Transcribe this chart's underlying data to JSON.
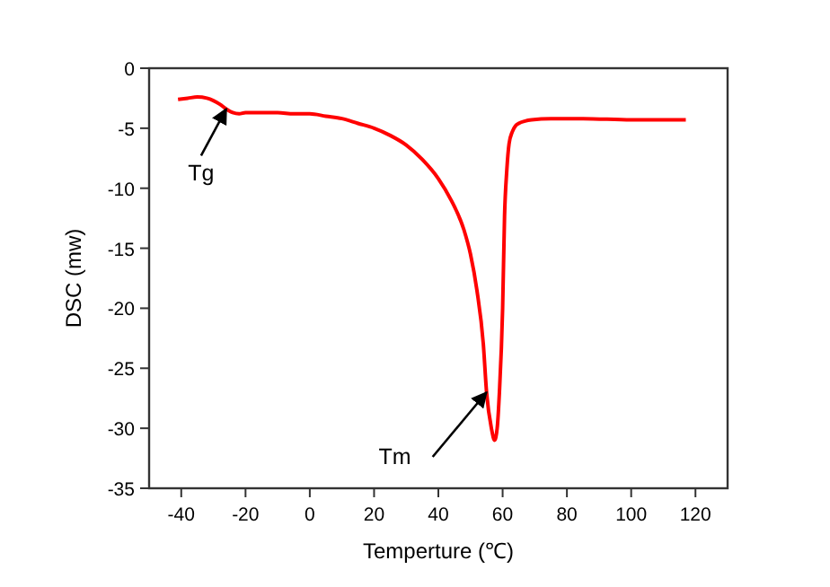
{
  "chart_data": {
    "type": "line",
    "xlabel": "Temperture (℃)",
    "ylabel": "DSC (mw)",
    "xlim": [
      -50,
      130
    ],
    "xticks": [
      -40,
      -20,
      0,
      20,
      40,
      60,
      80,
      100,
      120
    ],
    "ylim": [
      -35,
      0
    ],
    "yticks": [
      -35,
      -30,
      -25,
      -20,
      -15,
      -10,
      -5,
      0
    ],
    "grid": false,
    "marker": "none",
    "line_style": "solid",
    "annotations": [
      {
        "text": "Tg",
        "x": -26,
        "y": -3.4
      },
      {
        "text": "Tm",
        "x": 55,
        "y": -27
      }
    ],
    "series": [
      {
        "color": "#ff0000",
        "x": [
          -41,
          -38,
          -35,
          -32,
          -30,
          -28,
          -26,
          -24,
          -22,
          -20,
          -15,
          -10,
          -5,
          0,
          5,
          10,
          15,
          20,
          25,
          30,
          35,
          40,
          44,
          48,
          50,
          52,
          54,
          55,
          56.5,
          57.5,
          58.3,
          59,
          60,
          60.6,
          61.3,
          62,
          63,
          64,
          65,
          67,
          69,
          75,
          85,
          100,
          117
        ],
        "values": [
          -2.6,
          -2.5,
          -2.4,
          -2.5,
          -2.7,
          -3,
          -3.4,
          -3.7,
          -3.8,
          -3.7,
          -3.7,
          -3.7,
          -3.8,
          -3.8,
          -4,
          -4.2,
          -4.6,
          -5,
          -5.6,
          -6.4,
          -7.6,
          -9.2,
          -11,
          -13.5,
          -15.5,
          -18.5,
          -23,
          -27,
          -30,
          -31,
          -30,
          -27,
          -20,
          -12.3,
          -8.5,
          -6.3,
          -5.3,
          -4.8,
          -4.6,
          -4.4,
          -4.3,
          -4.2,
          -4.2,
          -4.3,
          -4.3
        ]
      }
    ]
  }
}
